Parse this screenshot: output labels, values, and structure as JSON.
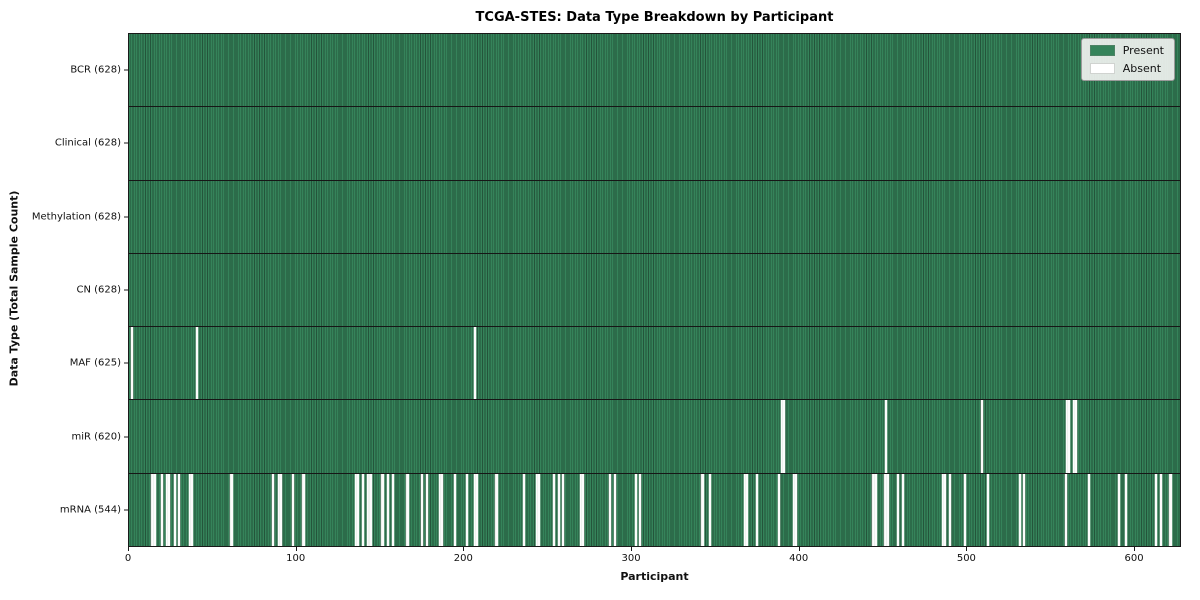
{
  "figure": {
    "title": "TCGA-STES: Data Type Breakdown by Participant",
    "xlabel": "Participant",
    "ylabel": "Data Type (Total Sample Count)"
  },
  "chart_data": {
    "type": "heatmap",
    "title": "TCGA-STES: Data Type Breakdown by Participant",
    "xlabel": "Participant",
    "ylabel": "Data Type (Total Sample Count)",
    "xlim": [
      0,
      628
    ],
    "n_participants": 628,
    "x_ticks": [
      0,
      100,
      200,
      300,
      400,
      500,
      600
    ],
    "legend_position": "upper right",
    "grid": false,
    "legend": [
      {
        "label": "Present",
        "color": "#35835a"
      },
      {
        "label": "Absent",
        "color": "#ffffff"
      }
    ],
    "colors": {
      "present": "#35835a",
      "present_edge": "#24553b",
      "absent": "#fcfcfc",
      "row_separator": "#161616",
      "spine": "#1a1a1a"
    },
    "rows": [
      {
        "label": "BCR (628)",
        "name": "BCR",
        "present_count": 628,
        "absent_participants": []
      },
      {
        "label": "Clinical (628)",
        "name": "Clinical",
        "present_count": 628,
        "absent_participants": []
      },
      {
        "label": "Methylation (628)",
        "name": "Methylation",
        "present_count": 628,
        "absent_participants": []
      },
      {
        "label": "CN (628)",
        "name": "CN",
        "present_count": 628,
        "absent_participants": []
      },
      {
        "label": "MAF (625)",
        "name": "MAF",
        "present_count": 625,
        "absent_participants": [
          1,
          40,
          206
        ]
      },
      {
        "label": "miR (620)",
        "name": "miR",
        "present_count": 620,
        "absent_participants": [
          389,
          390,
          451,
          508,
          559,
          560,
          563,
          564
        ]
      },
      {
        "label": "mRNA (544)",
        "name": "mRNA",
        "present_count": 544,
        "absent_participants": [
          13,
          14,
          15,
          19,
          22,
          23,
          27,
          29,
          36,
          37,
          60,
          61,
          85,
          89,
          90,
          97,
          103,
          104,
          135,
          136,
          139,
          142,
          143,
          144,
          150,
          151,
          154,
          157,
          165,
          166,
          174,
          177,
          185,
          186,
          194,
          201,
          206,
          207,
          218,
          219,
          235,
          243,
          244,
          253,
          256,
          258,
          269,
          270,
          286,
          289,
          302,
          304,
          341,
          342,
          346,
          367,
          368,
          374,
          387,
          396,
          397,
          443,
          444,
          445,
          450,
          451,
          452,
          458,
          461,
          485,
          486,
          489,
          498,
          512,
          531,
          533,
          558,
          572,
          590,
          594,
          612,
          615,
          620,
          621
        ]
      }
    ]
  }
}
